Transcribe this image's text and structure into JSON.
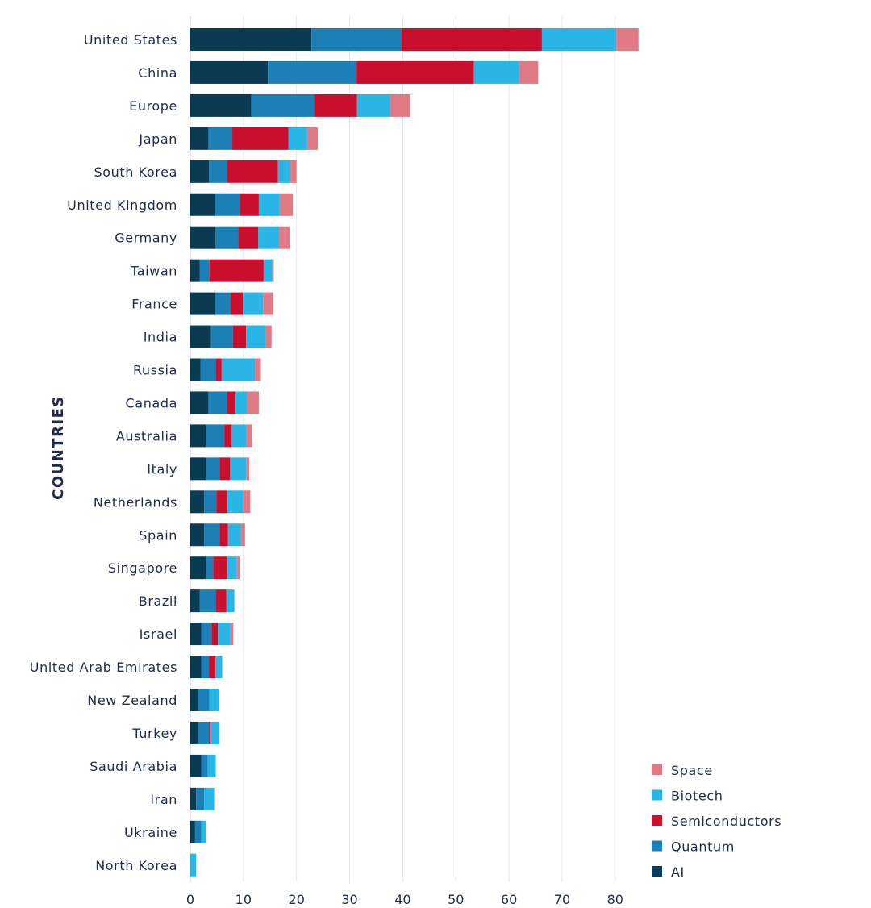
{
  "chart_data": {
    "type": "bar",
    "orientation": "horizontal",
    "stacked": true,
    "ylabel": "COUNTRIES",
    "xlabel": "",
    "xlim": [
      0,
      85
    ],
    "xticks": [
      0,
      10,
      20,
      30,
      40,
      50,
      60,
      70,
      80
    ],
    "grid": "vertical",
    "legend_position": "bottom-right",
    "categories": [
      "United States",
      "China",
      "Europe",
      "Japan",
      "South Korea",
      "United Kingdom",
      "Germany",
      "Taiwan",
      "France",
      "India",
      "Russia",
      "Canada",
      "Australia",
      "Italy",
      "Netherlands",
      "Spain",
      "Singapore",
      "Brazil",
      "Israel",
      "United Arab Emirates",
      "New Zealand",
      "Turkey",
      "Saudi Arabia",
      "Iran",
      "Ukraine",
      "North Korea"
    ],
    "series": [
      {
        "name": "AI",
        "color": "#0b3a53",
        "values": [
          22.8,
          14.6,
          11.5,
          3.4,
          3.5,
          4.6,
          4.7,
          1.8,
          4.6,
          3.9,
          1.9,
          3.4,
          2.9,
          2.9,
          2.6,
          2.6,
          2.9,
          1.8,
          2.1,
          2.1,
          1.5,
          1.5,
          2.1,
          1.1,
          0.9,
          0.0
        ]
      },
      {
        "name": "Quantum",
        "color": "#1c7fb5",
        "values": [
          17.0,
          16.7,
          11.8,
          4.5,
          3.4,
          4.7,
          4.3,
          1.8,
          3.0,
          4.1,
          2.9,
          3.5,
          3.5,
          2.6,
          2.3,
          2.9,
          1.4,
          3.0,
          1.9,
          1.4,
          2.1,
          2.0,
          1.2,
          1.5,
          1.2,
          0.0
        ]
      },
      {
        "name": "Semiconductors",
        "color": "#c8102e",
        "values": [
          26.4,
          22.1,
          8.1,
          10.6,
          9.6,
          3.6,
          3.8,
          10.2,
          2.3,
          2.5,
          1.1,
          1.6,
          1.4,
          2.0,
          2.1,
          1.6,
          2.7,
          2.0,
          1.2,
          1.2,
          0.0,
          0.3,
          0.0,
          0.0,
          0.0,
          0.0
        ]
      },
      {
        "name": "Biotech",
        "color": "#29b6e6",
        "values": [
          14.0,
          8.5,
          6.2,
          3.5,
          2.3,
          3.9,
          3.9,
          1.6,
          3.8,
          3.6,
          6.3,
          2.2,
          2.8,
          3.0,
          2.9,
          2.4,
          1.7,
          1.5,
          2.3,
          1.3,
          1.8,
          1.7,
          1.5,
          1.9,
          0.9,
          1.1
        ]
      },
      {
        "name": "Space",
        "color": "#e07b86",
        "values": [
          4.2,
          3.6,
          3.8,
          2.0,
          1.2,
          2.5,
          2.0,
          0.3,
          1.9,
          1.2,
          1.1,
          2.2,
          1.0,
          0.6,
          1.4,
          0.8,
          0.6,
          0.0,
          0.6,
          0.0,
          0.0,
          0.0,
          0.0,
          0.0,
          0.0,
          0.0
        ]
      }
    ]
  }
}
